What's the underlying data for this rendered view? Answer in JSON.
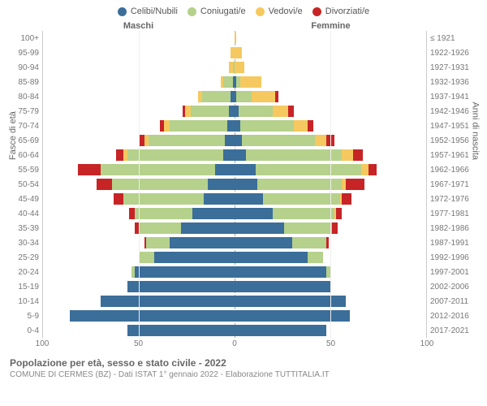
{
  "legend": [
    {
      "label": "Celibi/Nubili",
      "color": "#3b6e99"
    },
    {
      "label": "Coniugati/e",
      "color": "#b5d18b"
    },
    {
      "label": "Vedovi/e",
      "color": "#f5c95f"
    },
    {
      "label": "Divorziati/e",
      "color": "#c72426"
    }
  ],
  "header_left": "Maschi",
  "header_right": "Femmine",
  "y_label_left": "Fasce di età",
  "y_label_right": "Anni di nascita",
  "title": "Popolazione per età, sesso e stato civile - 2022",
  "subtitle": "COMUNE DI CERMES (BZ) - Dati ISTAT 1° gennaio 2022 - Elaborazione TUTTITALIA.IT",
  "chart": {
    "type": "population-pyramid-stacked",
    "x_max": 100,
    "x_ticks": [
      100,
      50,
      0,
      50,
      100
    ],
    "background_color": "#ffffff",
    "grid_color": "#eeeeee",
    "center_line": "dashed",
    "colors": {
      "single": "#3b6e99",
      "married": "#b5d18b",
      "widowed": "#f5c95f",
      "divorced": "#c72426"
    },
    "age_labels": [
      "100+",
      "95-99",
      "90-94",
      "85-89",
      "80-84",
      "75-79",
      "70-74",
      "65-69",
      "60-64",
      "55-59",
      "50-54",
      "45-49",
      "40-44",
      "35-39",
      "30-34",
      "25-29",
      "20-24",
      "15-19",
      "10-14",
      "5-9",
      "0-4"
    ],
    "birth_labels": [
      "≤ 1921",
      "1922-1926",
      "1927-1931",
      "1932-1936",
      "1937-1941",
      "1942-1946",
      "1947-1951",
      "1952-1956",
      "1957-1961",
      "1962-1966",
      "1967-1971",
      "1972-1976",
      "1977-1981",
      "1982-1986",
      "1987-1991",
      "1992-1996",
      "1997-2001",
      "2002-2006",
      "2007-2011",
      "2012-2016",
      "2017-2021"
    ],
    "rows": [
      {
        "m": [
          0,
          0,
          0,
          0
        ],
        "f": [
          0,
          0,
          1,
          0
        ]
      },
      {
        "m": [
          0,
          0,
          2,
          0
        ],
        "f": [
          0,
          0,
          4,
          0
        ]
      },
      {
        "m": [
          0,
          1,
          2,
          0
        ],
        "f": [
          0,
          0,
          5,
          0
        ]
      },
      {
        "m": [
          1,
          5,
          1,
          0
        ],
        "f": [
          1,
          2,
          11,
          0
        ]
      },
      {
        "m": [
          2,
          15,
          2,
          0
        ],
        "f": [
          1,
          8,
          12,
          2
        ]
      },
      {
        "m": [
          3,
          20,
          3,
          1
        ],
        "f": [
          2,
          18,
          8,
          3
        ]
      },
      {
        "m": [
          4,
          30,
          3,
          2
        ],
        "f": [
          3,
          28,
          7,
          3
        ]
      },
      {
        "m": [
          5,
          40,
          2,
          3
        ],
        "f": [
          4,
          38,
          6,
          4
        ]
      },
      {
        "m": [
          6,
          50,
          2,
          4
        ],
        "f": [
          6,
          50,
          6,
          5
        ]
      },
      {
        "m": [
          10,
          60,
          0,
          12
        ],
        "f": [
          11,
          55,
          4,
          4
        ]
      },
      {
        "m": [
          14,
          50,
          0,
          8
        ],
        "f": [
          12,
          44,
          2,
          10
        ]
      },
      {
        "m": [
          16,
          42,
          0,
          5
        ],
        "f": [
          15,
          40,
          1,
          5
        ]
      },
      {
        "m": [
          22,
          30,
          0,
          3
        ],
        "f": [
          20,
          32,
          1,
          3
        ]
      },
      {
        "m": [
          28,
          22,
          0,
          2
        ],
        "f": [
          26,
          25,
          0,
          3
        ]
      },
      {
        "m": [
          34,
          12,
          0,
          1
        ],
        "f": [
          30,
          18,
          0,
          1
        ]
      },
      {
        "m": [
          42,
          8,
          0,
          0
        ],
        "f": [
          38,
          8,
          0,
          0
        ]
      },
      {
        "m": [
          52,
          2,
          0,
          0
        ],
        "f": [
          48,
          2,
          0,
          0
        ]
      },
      {
        "m": [
          56,
          0,
          0,
          0
        ],
        "f": [
          50,
          0,
          0,
          0
        ]
      },
      {
        "m": [
          70,
          0,
          0,
          0
        ],
        "f": [
          58,
          0,
          0,
          0
        ]
      },
      {
        "m": [
          86,
          0,
          0,
          0
        ],
        "f": [
          60,
          0,
          0,
          0
        ]
      },
      {
        "m": [
          56,
          0,
          0,
          0
        ],
        "f": [
          48,
          0,
          0,
          0
        ]
      }
    ]
  }
}
